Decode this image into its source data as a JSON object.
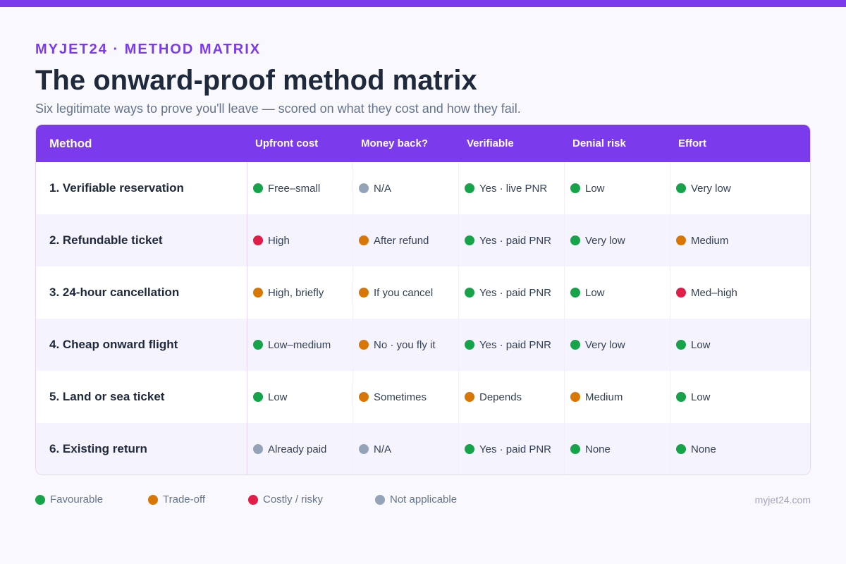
{
  "brand": "MYJET24 · METHOD MATRIX",
  "title": "The onward-proof method matrix",
  "subtitle": "Six legitimate ways to prove you'll leave — scored on what they cost and how they fail.",
  "colors": {
    "good": "#16a34a",
    "tradeoff": "#d97706",
    "bad": "#e11d48",
    "na": "#94a3b8"
  },
  "table": {
    "headers": [
      "Method",
      "Upfront cost",
      "Money back?",
      "Verifiable",
      "Denial risk",
      "Effort"
    ],
    "rows": [
      {
        "method": "1. Verifiable reservation",
        "cells": [
          {
            "text": "Free–small",
            "status": "good"
          },
          {
            "text": "N/A",
            "status": "na"
          },
          {
            "text": "Yes · live PNR",
            "status": "good"
          },
          {
            "text": "Low",
            "status": "good"
          },
          {
            "text": "Very low",
            "status": "good"
          }
        ]
      },
      {
        "method": "2. Refundable ticket",
        "cells": [
          {
            "text": "High",
            "status": "bad"
          },
          {
            "text": "After refund",
            "status": "tradeoff"
          },
          {
            "text": "Yes · paid PNR",
            "status": "good"
          },
          {
            "text": "Very low",
            "status": "good"
          },
          {
            "text": "Medium",
            "status": "tradeoff"
          }
        ]
      },
      {
        "method": "3. 24-hour cancellation",
        "cells": [
          {
            "text": "High, briefly",
            "status": "tradeoff"
          },
          {
            "text": "If you cancel",
            "status": "tradeoff"
          },
          {
            "text": "Yes · paid PNR",
            "status": "good"
          },
          {
            "text": "Low",
            "status": "good"
          },
          {
            "text": "Med–high",
            "status": "bad"
          }
        ]
      },
      {
        "method": "4. Cheap onward flight",
        "cells": [
          {
            "text": "Low–medium",
            "status": "good"
          },
          {
            "text": "No · you fly it",
            "status": "tradeoff"
          },
          {
            "text": "Yes · paid PNR",
            "status": "good"
          },
          {
            "text": "Very low",
            "status": "good"
          },
          {
            "text": "Low",
            "status": "good"
          }
        ]
      },
      {
        "method": "5. Land or sea ticket",
        "cells": [
          {
            "text": "Low",
            "status": "good"
          },
          {
            "text": "Sometimes",
            "status": "tradeoff"
          },
          {
            "text": "Depends",
            "status": "tradeoff"
          },
          {
            "text": "Medium",
            "status": "tradeoff"
          },
          {
            "text": "Low",
            "status": "good"
          }
        ]
      },
      {
        "method": "6. Existing return",
        "cells": [
          {
            "text": "Already paid",
            "status": "na"
          },
          {
            "text": "N/A",
            "status": "na"
          },
          {
            "text": "Yes · paid PNR",
            "status": "good"
          },
          {
            "text": "None",
            "status": "good"
          },
          {
            "text": "None",
            "status": "good"
          }
        ]
      }
    ]
  },
  "legend": [
    {
      "label": "Favourable",
      "status": "good"
    },
    {
      "label": "Trade-off",
      "status": "tradeoff"
    },
    {
      "label": "Costly / risky",
      "status": "bad"
    },
    {
      "label": "Not applicable",
      "status": "na"
    }
  ],
  "footer": "myjet24.com"
}
